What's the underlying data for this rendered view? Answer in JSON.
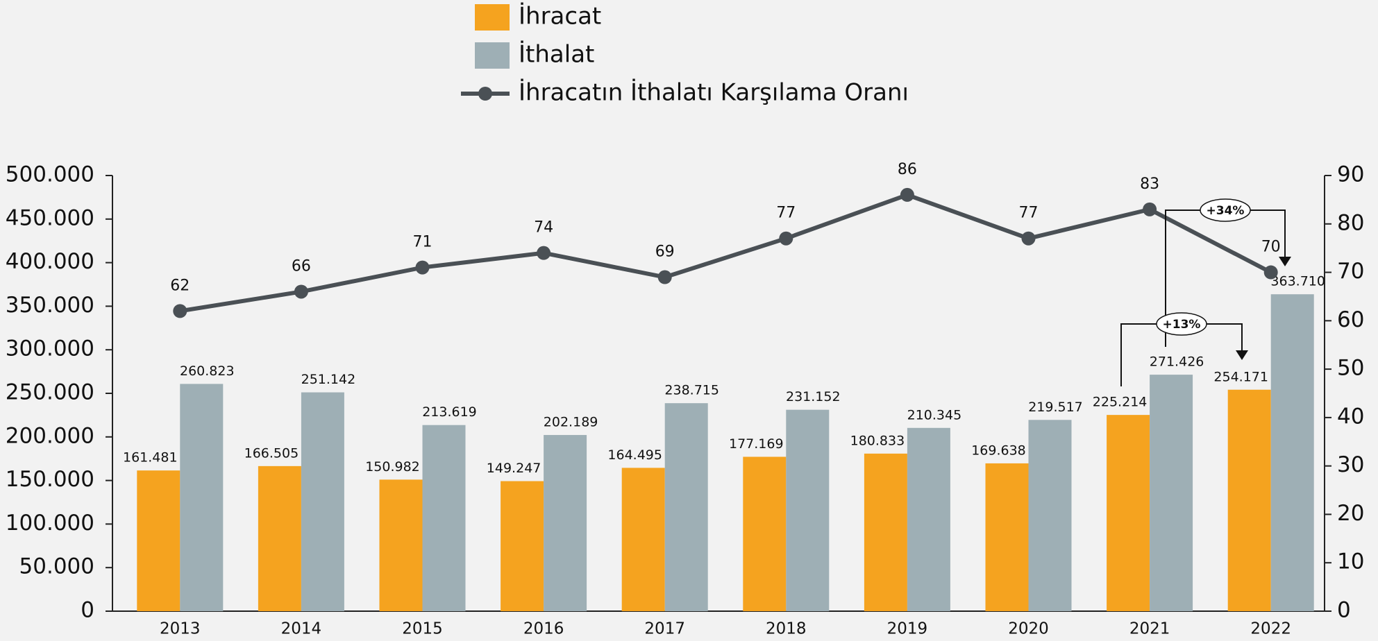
{
  "chart_data": {
    "type": "bar_line",
    "categories": [
      "2013",
      "2014",
      "2015",
      "2016",
      "2017",
      "2018",
      "2019",
      "2020",
      "2021",
      "2022"
    ],
    "series": [
      {
        "name": "İhracat",
        "color": "#f5a31f",
        "values": [
          161481,
          166505,
          150982,
          149247,
          164495,
          177169,
          180833,
          169638,
          225214,
          254171
        ],
        "value_labels": [
          "161.481",
          "166.505",
          "150.982",
          "149.247",
          "164.495",
          "177.169",
          "180.833",
          "169.638",
          "225.214",
          "254.171"
        ]
      },
      {
        "name": "İthalat",
        "color": "#9eafb5",
        "values": [
          260823,
          251142,
          213619,
          202189,
          238715,
          231152,
          210345,
          219517,
          271426,
          363710
        ],
        "value_labels": [
          "260.823",
          "251.142",
          "213.619",
          "202.189",
          "238.715",
          "231.152",
          "210.345",
          "219.517",
          "271.426",
          "363.710"
        ]
      },
      {
        "name": "İhracatın İthalatı Karşılama Oranı",
        "color": "#4a5055",
        "axis": "y2",
        "type": "line",
        "values": [
          62,
          66,
          71,
          74,
          69,
          77,
          86,
          77,
          83,
          70
        ]
      }
    ],
    "ylim": [
      0,
      500000
    ],
    "yticks": [
      0,
      {
        "value": 50000,
        "label": "50.000"
      },
      {
        "value": 100000,
        "label": "100.000"
      },
      {
        "value": 150000,
        "label": "150.000"
      },
      {
        "value": 200000,
        "label": "200.000"
      },
      {
        "value": 250000,
        "label": "250.000"
      },
      {
        "value": 300000,
        "label": "300.000"
      },
      {
        "value": 350000,
        "label": "350.000"
      },
      {
        "value": 400000,
        "label": "400.000"
      },
      {
        "value": 450000,
        "label": "450.000"
      },
      {
        "value": 500000,
        "label": "500.000"
      }
    ],
    "y2lim": [
      0,
      90
    ],
    "y2ticks": [
      0,
      10,
      20,
      30,
      40,
      50,
      60,
      70,
      80,
      90
    ],
    "annotations": [
      "+34%",
      "+13%"
    ]
  }
}
